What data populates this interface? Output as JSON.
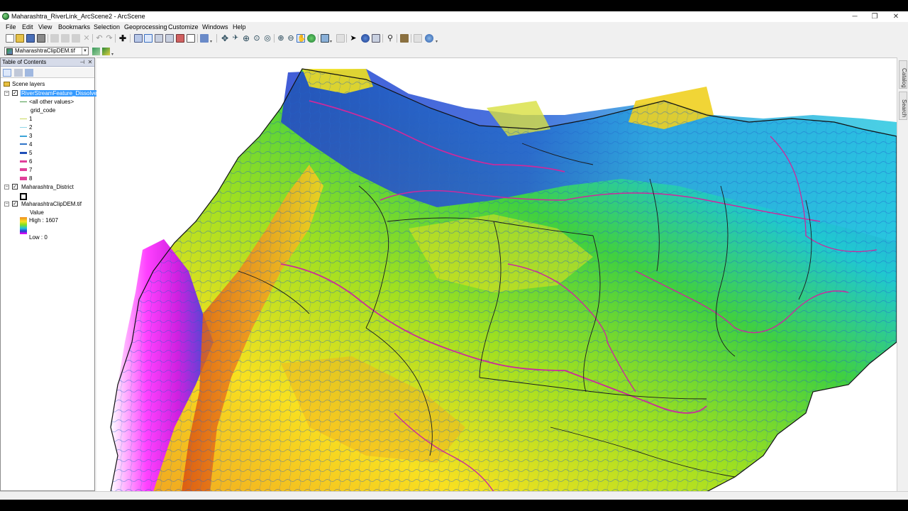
{
  "window": {
    "title": "Maharashtra_RiverLink_ArcScene2 - ArcScene",
    "controls": [
      "─",
      "❐",
      "✕"
    ]
  },
  "menu": [
    "File",
    "Edit",
    "View",
    "Bookmarks",
    "Selection",
    "Geoprocessing",
    "Customize",
    "Windows",
    "Help"
  ],
  "layer_dropdown": {
    "value": "MaharashtraClipDEM.tif"
  },
  "toc": {
    "title": "Table of Contents",
    "root": "Scene layers",
    "layers": [
      {
        "name": "RiverStreamFeature_Dissolve",
        "checked": true,
        "selected": true,
        "all_other": "<all other values>",
        "field": "grid_code",
        "classes": [
          "1",
          "2",
          "3",
          "4",
          "5",
          "6",
          "7",
          "8"
        ]
      },
      {
        "name": "Maharashtra_District",
        "checked": true
      },
      {
        "name": "MaharashtraClipDEM.tif",
        "checked": true,
        "value_label": "Value",
        "high": "High : 1607",
        "low": "Low : 0"
      }
    ]
  },
  "side_tabs": [
    "Catalog",
    "Search"
  ],
  "colors": {
    "class_1": "#c8d85a",
    "class_2": "#8fd6e8",
    "class_3": "#3ba4d8",
    "class_4": "#2f74c8",
    "class_5": "#1f4fb8",
    "class_6": "#e0409a",
    "class_7": "#e0409a",
    "class_8": "#e0409a",
    "dem_high": "#f09020",
    "dem_low": "#ff00ff",
    "stream_major": "#cc2a9c",
    "district_border": "#1a1a1a"
  }
}
